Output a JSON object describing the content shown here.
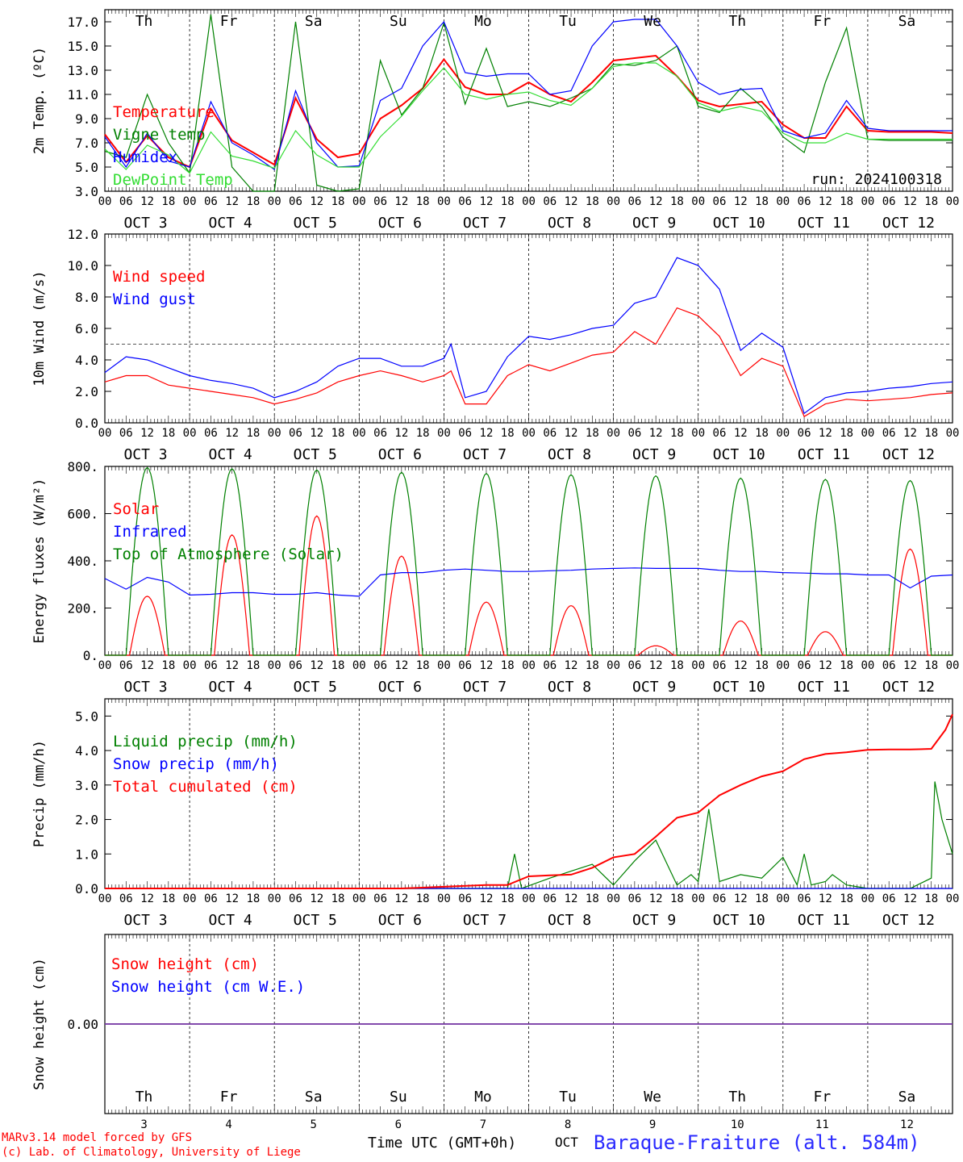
{
  "colors": {
    "red": "#ff0000",
    "green": "#008000",
    "blue": "#0000ff",
    "lightgreen": "#33dd33",
    "purple": "#7030a0",
    "weekend": "#ff0000"
  },
  "days": [
    {
      "name": "Th",
      "num": "3",
      "weekend": false
    },
    {
      "name": "Fr",
      "num": "4",
      "weekend": false
    },
    {
      "name": "Sa",
      "num": "5",
      "weekend": true
    },
    {
      "name": "Su",
      "num": "6",
      "weekend": true
    },
    {
      "name": "Mo",
      "num": "7",
      "weekend": false
    },
    {
      "name": "Tu",
      "num": "8",
      "weekend": false
    },
    {
      "name": "We",
      "num": "9",
      "weekend": false
    },
    {
      "name": "Th",
      "num": "10",
      "weekend": false
    },
    {
      "name": "Fr",
      "num": "11",
      "weekend": false
    },
    {
      "name": "Sa",
      "num": "12",
      "weekend": true
    }
  ],
  "hour_labels": [
    "00",
    "06",
    "12",
    "18"
  ],
  "month_label": "OCT",
  "run_label": "run: 2024100318",
  "footer": {
    "model": "MARv3.14 model forced by GFS",
    "copyright": "(c) Lab. of Climatology, University of Liege",
    "xlabel": "Time UTC (GMT+0h)",
    "month": "OCT",
    "station": "Baraque-Fraiture (alt. 584m)"
  },
  "chart_data": [
    {
      "type": "line",
      "ylabel": "2m Temp. (ºC)",
      "ylim": [
        3.0,
        18.0
      ],
      "yticks": [
        3.0,
        5.0,
        7.0,
        9.0,
        11.0,
        13.0,
        15.0,
        17.0
      ],
      "x_unit": "hours since 2024-10-03 00 UTC",
      "grid": "vertical dashed at midnight",
      "series": [
        {
          "name": "Temperature",
          "color": "red",
          "x": [
            0,
            6,
            12,
            18,
            24,
            30,
            36,
            42,
            48,
            54,
            60,
            66,
            72,
            78,
            84,
            90,
            96,
            102,
            108,
            114,
            120,
            126,
            132,
            138,
            144,
            150,
            156,
            162,
            168,
            174,
            180,
            186,
            192,
            198,
            204,
            210,
            216,
            222,
            228,
            234,
            240
          ],
          "y": [
            7.7,
            5.4,
            7.6,
            5.8,
            5.0,
            9.8,
            7.2,
            6.2,
            5.2,
            10.7,
            7.3,
            5.8,
            6.1,
            9.0,
            10.1,
            11.5,
            13.9,
            11.6,
            11.0,
            11.0,
            12.0,
            11.0,
            10.4,
            12.0,
            13.8,
            14.0,
            14.2,
            12.5,
            10.5,
            10.0,
            10.2,
            10.4,
            8.5,
            7.4,
            7.4,
            10.0,
            8.0,
            7.9,
            7.9,
            7.9,
            7.8
          ]
        },
        {
          "name": "Vigne temp",
          "color": "green",
          "x": [
            0,
            6,
            12,
            18,
            24,
            30,
            36,
            42,
            48,
            54,
            60,
            66,
            72,
            78,
            84,
            90,
            96,
            102,
            108,
            114,
            120,
            126,
            132,
            138,
            144,
            150,
            156,
            162,
            168,
            174,
            180,
            186,
            192,
            198,
            204,
            210,
            216,
            222,
            228,
            234,
            240
          ],
          "y": [
            6.3,
            5.8,
            11.0,
            7.0,
            4.5,
            17.6,
            5.0,
            2.8,
            2.9,
            17.0,
            3.5,
            2.5,
            3.2,
            13.8,
            9.3,
            11.5,
            16.9,
            10.2,
            14.8,
            10.0,
            10.4,
            10.0,
            10.7,
            11.5,
            13.5,
            13.4,
            13.8,
            15.0,
            10.0,
            9.5,
            11.5,
            10.0,
            7.5,
            6.2,
            12.0,
            16.5,
            7.3,
            7.2,
            7.2,
            7.2,
            7.2
          ]
        },
        {
          "name": "Humidex",
          "color": "blue",
          "x": [
            0,
            6,
            12,
            18,
            24,
            30,
            36,
            42,
            48,
            54,
            60,
            66,
            72,
            78,
            84,
            90,
            96,
            102,
            108,
            114,
            120,
            126,
            132,
            138,
            144,
            150,
            156,
            162,
            168,
            174,
            180,
            186,
            192,
            198,
            204,
            210,
            216,
            222,
            228,
            234,
            240
          ],
          "y": [
            7.5,
            5.0,
            7.8,
            5.5,
            5.0,
            10.4,
            7.0,
            6.0,
            4.8,
            11.3,
            7.0,
            5.0,
            5.1,
            10.5,
            11.5,
            15.0,
            17.0,
            12.8,
            12.5,
            12.7,
            12.7,
            11.0,
            11.3,
            15.0,
            17.0,
            17.2,
            17.2,
            15.0,
            12.0,
            11.0,
            11.4,
            11.5,
            8.0,
            7.4,
            7.8,
            10.5,
            8.2,
            8.0,
            8.0,
            8.0,
            8.0
          ]
        },
        {
          "name": "DewPoint Temp",
          "color": "lightgreen",
          "x": [
            0,
            6,
            12,
            18,
            24,
            30,
            36,
            42,
            48,
            54,
            60,
            66,
            72,
            78,
            84,
            90,
            96,
            102,
            108,
            114,
            120,
            126,
            132,
            138,
            144,
            150,
            156,
            162,
            168,
            174,
            180,
            186,
            192,
            198,
            204,
            210,
            216,
            222,
            228,
            234,
            240
          ],
          "y": [
            6.5,
            4.8,
            6.8,
            6.0,
            4.5,
            7.9,
            5.9,
            5.5,
            4.9,
            8.0,
            6.0,
            5.0,
            5.0,
            7.5,
            9.2,
            11.3,
            13.2,
            11.0,
            10.6,
            11.0,
            11.2,
            10.5,
            10.1,
            11.5,
            13.3,
            13.6,
            13.6,
            12.5,
            10.3,
            9.6,
            10.0,
            9.6,
            7.8,
            7.0,
            7.0,
            7.8,
            7.3,
            7.3,
            7.3,
            7.3,
            7.3
          ]
        }
      ]
    },
    {
      "type": "line",
      "ylabel": "10m Wind (m/s)",
      "ylim": [
        0.0,
        12.0
      ],
      "yticks": [
        0.0,
        2.0,
        4.0,
        6.0,
        8.0,
        10.0,
        12.0
      ],
      "reference_line": 5.0,
      "series": [
        {
          "name": "Wind speed",
          "color": "red",
          "x": [
            0,
            6,
            12,
            18,
            24,
            30,
            36,
            42,
            48,
            54,
            60,
            66,
            72,
            78,
            84,
            90,
            96,
            98,
            102,
            108,
            114,
            120,
            126,
            132,
            138,
            144,
            150,
            156,
            162,
            168,
            174,
            180,
            186,
            192,
            198,
            204,
            210,
            216,
            222,
            228,
            234,
            240
          ],
          "y": [
            2.6,
            3.0,
            3.0,
            2.4,
            2.2,
            2.0,
            1.8,
            1.6,
            1.2,
            1.5,
            1.9,
            2.6,
            3.0,
            3.3,
            3.0,
            2.6,
            3.0,
            3.3,
            1.2,
            1.2,
            3.0,
            3.7,
            3.3,
            3.8,
            4.3,
            4.5,
            5.8,
            5.0,
            7.3,
            6.8,
            5.5,
            3.0,
            4.1,
            3.6,
            0.4,
            1.2,
            1.5,
            1.4,
            1.5,
            1.6,
            1.8,
            1.9
          ]
        },
        {
          "name": "Wind gust",
          "color": "blue",
          "x": [
            0,
            6,
            12,
            18,
            24,
            30,
            36,
            42,
            48,
            54,
            60,
            66,
            72,
            78,
            84,
            90,
            96,
            98,
            102,
            108,
            114,
            120,
            126,
            132,
            138,
            144,
            150,
            156,
            162,
            168,
            174,
            180,
            186,
            192,
            198,
            204,
            210,
            216,
            222,
            228,
            234,
            240
          ],
          "y": [
            3.2,
            4.2,
            4.0,
            3.5,
            3.0,
            2.7,
            2.5,
            2.2,
            1.6,
            2.0,
            2.6,
            3.6,
            4.1,
            4.1,
            3.6,
            3.6,
            4.1,
            5.0,
            1.6,
            2.0,
            4.2,
            5.5,
            5.3,
            5.6,
            6.0,
            6.2,
            7.6,
            8.0,
            10.5,
            10.0,
            8.5,
            4.6,
            5.7,
            4.8,
            0.6,
            1.6,
            1.9,
            2.0,
            2.2,
            2.3,
            2.5,
            2.6
          ]
        }
      ]
    },
    {
      "type": "line",
      "ylabel": "Energy fluxes (W/m²)",
      "ylim": [
        0,
        800
      ],
      "yticks": [
        0,
        200,
        400,
        600,
        800
      ],
      "ytick_labels": [
        "0.",
        "200.",
        "400.",
        "600.",
        "800."
      ],
      "series": [
        {
          "name": "Solar",
          "color": "red",
          "peaks": [
            {
              "x": 12,
              "y": 250
            },
            {
              "x": 36,
              "y": 510
            },
            {
              "x": 60,
              "y": 590
            },
            {
              "x": 84,
              "y": 420
            },
            {
              "x": 108,
              "y": 225
            },
            {
              "x": 132,
              "y": 210
            },
            {
              "x": 156,
              "y": 40
            },
            {
              "x": 180,
              "y": 145
            },
            {
              "x": 204,
              "y": 100
            },
            {
              "x": 228,
              "y": 450
            }
          ],
          "halfwidth": 5
        },
        {
          "name": "Infrared",
          "color": "blue",
          "x": [
            0,
            6,
            12,
            18,
            24,
            30,
            36,
            42,
            48,
            54,
            60,
            66,
            72,
            78,
            84,
            90,
            96,
            102,
            108,
            114,
            120,
            126,
            132,
            138,
            144,
            150,
            156,
            162,
            168,
            174,
            180,
            186,
            192,
            198,
            204,
            210,
            216,
            222,
            228,
            234,
            240
          ],
          "y": [
            325,
            280,
            330,
            310,
            255,
            258,
            265,
            265,
            258,
            258,
            265,
            255,
            250,
            340,
            350,
            350,
            360,
            365,
            360,
            355,
            355,
            358,
            360,
            365,
            368,
            370,
            368,
            368,
            368,
            360,
            355,
            355,
            350,
            348,
            345,
            345,
            340,
            340,
            285,
            335,
            340
          ]
        },
        {
          "name": "Top of Atmosphere (Solar)",
          "color": "green",
          "peaks": [
            {
              "x": 12,
              "y": 795
            },
            {
              "x": 36,
              "y": 790
            },
            {
              "x": 60,
              "y": 785
            },
            {
              "x": 84,
              "y": 775
            },
            {
              "x": 108,
              "y": 770
            },
            {
              "x": 132,
              "y": 765
            },
            {
              "x": 156,
              "y": 760
            },
            {
              "x": 180,
              "y": 750
            },
            {
              "x": 204,
              "y": 745
            },
            {
              "x": 228,
              "y": 740
            }
          ],
          "halfwidth": 6
        }
      ]
    },
    {
      "type": "line",
      "ylabel": "Precip (mm/h)",
      "ylim": [
        0.0,
        5.0
      ],
      "yticks": [
        0.0,
        1.0,
        2.0,
        3.0,
        4.0,
        5.0
      ],
      "series": [
        {
          "name": "Liquid precip (mm/h)",
          "color": "green",
          "x": [
            0,
            84,
            96,
            114,
            116,
            118,
            126,
            132,
            138,
            144,
            150,
            156,
            162,
            166,
            168,
            171,
            174,
            180,
            186,
            192,
            196,
            198,
            200,
            204,
            206,
            210,
            216,
            222,
            228,
            234,
            235,
            237,
            240
          ],
          "y": [
            0,
            0,
            0,
            0,
            1.0,
            0,
            0.3,
            0.5,
            0.7,
            0.1,
            0.8,
            1.4,
            0.1,
            0.4,
            0.2,
            2.3,
            0.2,
            0.4,
            0.3,
            0.9,
            0.1,
            1.0,
            0.1,
            0.2,
            0.4,
            0.1,
            0,
            0,
            0,
            0.3,
            3.1,
            2.0,
            1.0
          ]
        },
        {
          "name": "Snow precip (mm/h)",
          "color": "blue",
          "x": [
            0,
            240
          ],
          "y": [
            0,
            0
          ]
        },
        {
          "name": "Total cumulated (cm)",
          "color": "red",
          "x": [
            0,
            84,
            96,
            108,
            114,
            120,
            126,
            132,
            138,
            144,
            150,
            156,
            162,
            168,
            174,
            180,
            186,
            192,
            198,
            204,
            210,
            216,
            222,
            228,
            234,
            238,
            240
          ],
          "y": [
            0,
            0,
            0.05,
            0.1,
            0.1,
            0.35,
            0.38,
            0.4,
            0.6,
            0.9,
            1.0,
            1.5,
            2.05,
            2.2,
            2.7,
            3.0,
            3.25,
            3.4,
            3.75,
            3.9,
            3.95,
            4.02,
            4.03,
            4.03,
            4.05,
            4.6,
            5.05
          ]
        }
      ]
    },
    {
      "type": "line",
      "ylabel": "Snow height (cm)",
      "ytick_labels": [
        "0.00"
      ],
      "series": [
        {
          "name": "Snow height (cm)",
          "color": "red",
          "x": [
            0,
            240
          ],
          "y": [
            0,
            0
          ]
        },
        {
          "name": "Snow height (cm W.E.)",
          "color": "blue",
          "x": [
            0,
            240
          ],
          "y": [
            0,
            0
          ]
        }
      ]
    }
  ]
}
